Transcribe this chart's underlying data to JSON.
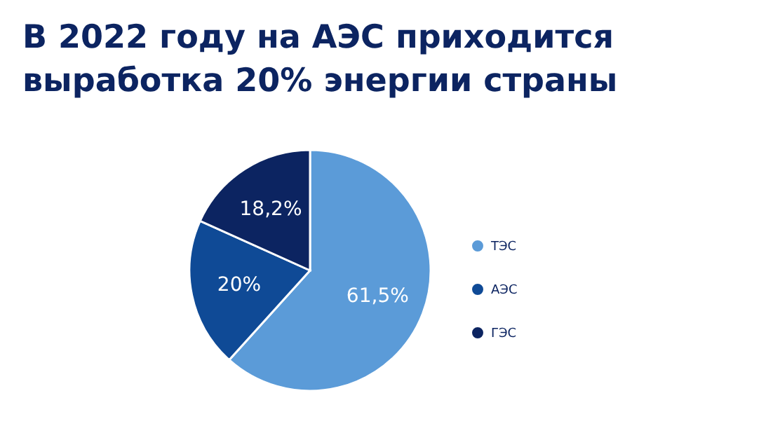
{
  "chart_data": {
    "type": "pie",
    "title": "В 2022 году на АЭС приходится\nвыработка 20% энергии страны",
    "categories": [
      "ТЭС",
      "АЭС",
      "ГЭС"
    ],
    "values": [
      61.5,
      20,
      18.2
    ],
    "colors": [
      "#5b9bd8",
      "#0f4a96",
      "#0c2461"
    ],
    "value_labels": [
      "61,5%",
      "20%",
      "18,2%"
    ],
    "legend": "right"
  }
}
